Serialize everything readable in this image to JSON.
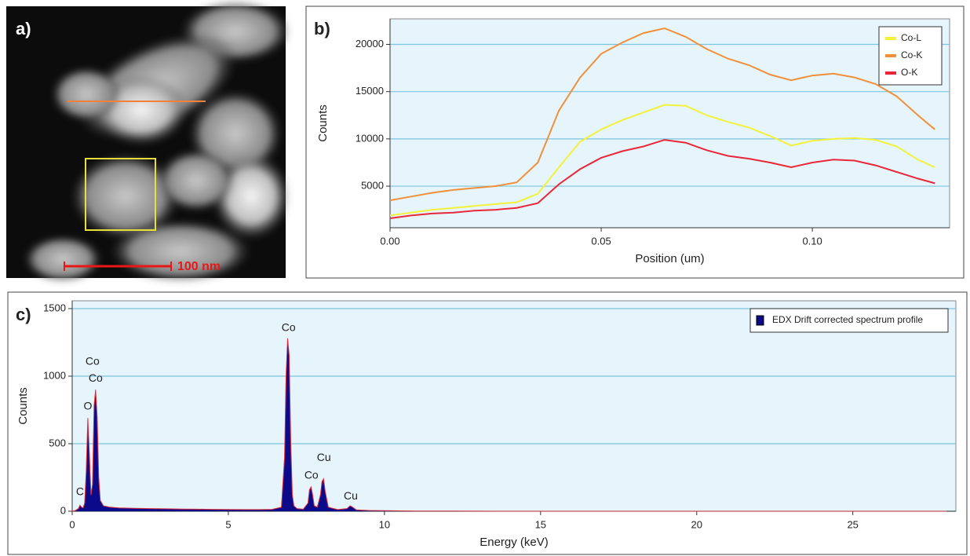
{
  "image_panel": {
    "label": "a)",
    "scale_bar": "100 nm"
  },
  "chart_data": [
    {
      "type": "line",
      "panel_label": "b)",
      "x_label": "Position (um)",
      "y_label": "Counts",
      "x": [
        0,
        0.005,
        0.01,
        0.015,
        0.02,
        0.025,
        0.03,
        0.035,
        0.04,
        0.045,
        0.05,
        0.055,
        0.06,
        0.065,
        0.07,
        0.075,
        0.08,
        0.085,
        0.09,
        0.095,
        0.1,
        0.105,
        0.11,
        0.115,
        0.12,
        0.125,
        0.129
      ],
      "series": [
        {
          "name": "Co-L",
          "color": "#f2f23a",
          "values": [
            1900,
            2200,
            2500,
            2700,
            2900,
            3100,
            3300,
            4200,
            7000,
            9700,
            11000,
            12000,
            12800,
            13600,
            13500,
            12500,
            11800,
            11200,
            10300,
            9300,
            9800,
            10000,
            10100,
            9900,
            9200,
            7800,
            7000
          ]
        },
        {
          "name": "Co-K",
          "color": "#f0903a",
          "values": [
            3500,
            3900,
            4300,
            4600,
            4800,
            5000,
            5400,
            7500,
            13000,
            16500,
            19000,
            20200,
            21200,
            21700,
            20800,
            19500,
            18500,
            17800,
            16800,
            16200,
            16700,
            16900,
            16500,
            15800,
            14500,
            12500,
            11000
          ]
        },
        {
          "name": "O-K",
          "color": "#e8283a",
          "values": [
            1600,
            1900,
            2100,
            2200,
            2400,
            2500,
            2700,
            3200,
            5200,
            6800,
            8000,
            8700,
            9200,
            9900,
            9600,
            8800,
            8200,
            7900,
            7500,
            7000,
            7500,
            7800,
            7700,
            7200,
            6500,
            5800,
            5300
          ]
        }
      ],
      "xlim": [
        0,
        0.1325
      ],
      "ylim": [
        600,
        22700
      ],
      "xticks": [
        {
          "value": 0,
          "label": "0.00"
        },
        {
          "value": 0.05,
          "label": "0.05"
        },
        {
          "value": 0.1,
          "label": "0.10"
        }
      ],
      "yticks": [
        5000,
        10000,
        15000,
        20000
      ],
      "grid": true,
      "legend": "upper right"
    },
    {
      "type": "area",
      "panel_label": "c)",
      "x_label": "Energy (keV)",
      "y_label": "Counts",
      "x": [
        0,
        0.1,
        0.2,
        0.25,
        0.3,
        0.35,
        0.4,
        0.45,
        0.5,
        0.55,
        0.6,
        0.65,
        0.7,
        0.75,
        0.8,
        0.85,
        0.9,
        1.0,
        1.2,
        1.5,
        2,
        2.5,
        3,
        3.5,
        4,
        4.5,
        5,
        5.5,
        6,
        6.4,
        6.7,
        6.8,
        6.85,
        6.9,
        6.95,
        7.0,
        7.05,
        7.1,
        7.2,
        7.4,
        7.55,
        7.6,
        7.65,
        7.7,
        7.75,
        7.85,
        7.95,
        8.0,
        8.05,
        8.1,
        8.2,
        8.5,
        8.8,
        8.9,
        8.95,
        9.1,
        9.5,
        10,
        11,
        12,
        14,
        18,
        22,
        28
      ],
      "series": [
        {
          "name": "EDX Drift corrected spectrum profile",
          "color": "#0a0a8a",
          "edge_color": "#e0303a",
          "values": [
            0,
            5,
            20,
            45,
            30,
            25,
            60,
            300,
            690,
            420,
            120,
            200,
            780,
            900,
            700,
            250,
            80,
            40,
            30,
            25,
            22,
            20,
            18,
            16,
            15,
            14,
            13,
            12,
            12,
            14,
            30,
            400,
            1000,
            1280,
            1150,
            500,
            120,
            40,
            20,
            15,
            60,
            160,
            180,
            120,
            40,
            30,
            120,
            220,
            240,
            150,
            30,
            12,
            20,
            40,
            35,
            10,
            6,
            4,
            2,
            1,
            0,
            0,
            0,
            0
          ]
        }
      ],
      "annotations": [
        {
          "text": "C",
          "x": 0.25,
          "y": 140
        },
        {
          "text": "O",
          "x": 0.5,
          "y": 773
        },
        {
          "text": "Co",
          "x": 0.65,
          "y": 1105
        },
        {
          "text": "Co",
          "x": 0.75,
          "y": 982
        },
        {
          "text": "Co",
          "x": 6.93,
          "y": 1355
        },
        {
          "text": "Co",
          "x": 7.66,
          "y": 262
        },
        {
          "text": "Cu",
          "x": 8.06,
          "y": 395
        },
        {
          "text": "Cu",
          "x": 8.92,
          "y": 110
        }
      ],
      "xlim": [
        0,
        28.3
      ],
      "ylim": [
        0,
        1558
      ],
      "xticks": [
        0,
        5,
        10,
        15,
        20,
        25
      ],
      "yticks": [
        0,
        500,
        1000,
        1500
      ],
      "grid": true,
      "legend": "upper right"
    }
  ]
}
